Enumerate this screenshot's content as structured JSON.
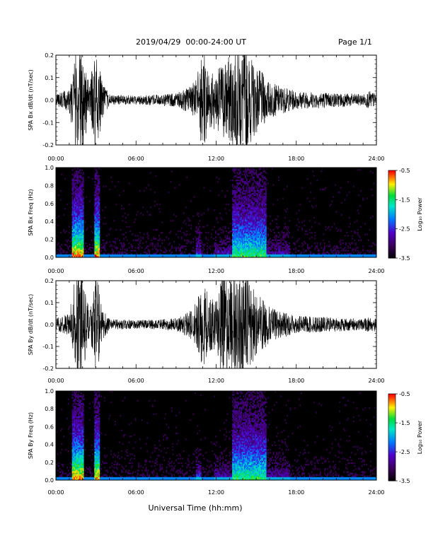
{
  "header": {
    "title": "2019/04/29  00:00-24:00 UT",
    "page": "Page 1/1"
  },
  "xaxis": {
    "title": "Universal Time (hh:mm)",
    "ticks": [
      "00:00",
      "06:00",
      "12:00",
      "18:00",
      "24:00"
    ]
  },
  "colorbar": {
    "label": "Log₁₀ Power",
    "ticks": [
      "-0.5",
      "-1.5",
      "-2.5",
      "-3.5"
    ]
  },
  "chart_data": [
    {
      "type": "line",
      "ylabel": "SPA Bx dB/dt (nT/sec)",
      "ylim": [
        -0.2,
        0.2
      ],
      "yticks": [
        "0.2",
        "0.1",
        "0.0",
        "-0.1",
        "-0.2"
      ],
      "xlim": [
        "00:00",
        "24:00"
      ],
      "envelope": {
        "x_hours": [
          0,
          1,
          1.5,
          2,
          2.5,
          3,
          3.5,
          4,
          6,
          8,
          9,
          10,
          10.5,
          11,
          11.5,
          12,
          12.5,
          13,
          13.5,
          14,
          14.5,
          15,
          15.5,
          16,
          17,
          18,
          20,
          22,
          23,
          23.5,
          24
        ],
        "amplitude": [
          0.03,
          0.05,
          0.25,
          0.25,
          0.06,
          0.25,
          0.08,
          0.025,
          0.02,
          0.025,
          0.03,
          0.06,
          0.1,
          0.22,
          0.15,
          0.12,
          0.18,
          0.2,
          0.22,
          0.25,
          0.2,
          0.15,
          0.12,
          0.08,
          0.06,
          0.04,
          0.035,
          0.03,
          0.025,
          0.04,
          0.03
        ]
      }
    },
    {
      "type": "heatmap",
      "ylabel": "SPA Bx Freq (Hz)",
      "ylim": [
        0.0,
        1.0
      ],
      "yticks": [
        "1.0",
        "0.8",
        "0.6",
        "0.4",
        "0.2",
        "0.0"
      ],
      "xlim": [
        "00:00",
        "24:00"
      ],
      "zlim": [
        -3.5,
        -0.5
      ]
    },
    {
      "type": "line",
      "ylabel": "SPA By dB/dt (nT/sec)",
      "ylim": [
        -0.2,
        0.2
      ],
      "yticks": [
        "0.2",
        "0.1",
        "0.0",
        "-0.1",
        "-0.2"
      ],
      "xlim": [
        "00:00",
        "24:00"
      ],
      "envelope": {
        "x_hours": [
          0,
          1,
          1.5,
          2,
          2.5,
          3,
          3.5,
          4,
          6,
          8,
          9,
          10,
          10.5,
          11,
          11.5,
          12,
          12.5,
          13,
          13.5,
          14,
          14.5,
          15,
          15.5,
          16,
          17,
          18,
          20,
          22,
          23,
          23.5,
          24
        ],
        "amplitude": [
          0.03,
          0.05,
          0.25,
          0.25,
          0.06,
          0.25,
          0.08,
          0.025,
          0.02,
          0.025,
          0.03,
          0.06,
          0.1,
          0.2,
          0.12,
          0.12,
          0.25,
          0.2,
          0.22,
          0.25,
          0.2,
          0.15,
          0.12,
          0.08,
          0.06,
          0.04,
          0.035,
          0.03,
          0.025,
          0.04,
          0.03
        ]
      }
    },
    {
      "type": "heatmap",
      "ylabel": "SPA By Freq (Hz)",
      "ylim": [
        0.0,
        1.0
      ],
      "yticks": [
        "1.0",
        "0.8",
        "0.6",
        "0.4",
        "0.2",
        "0.0"
      ],
      "xlim": [
        "00:00",
        "24:00"
      ],
      "zlim": [
        -3.5,
        -0.5
      ]
    }
  ]
}
